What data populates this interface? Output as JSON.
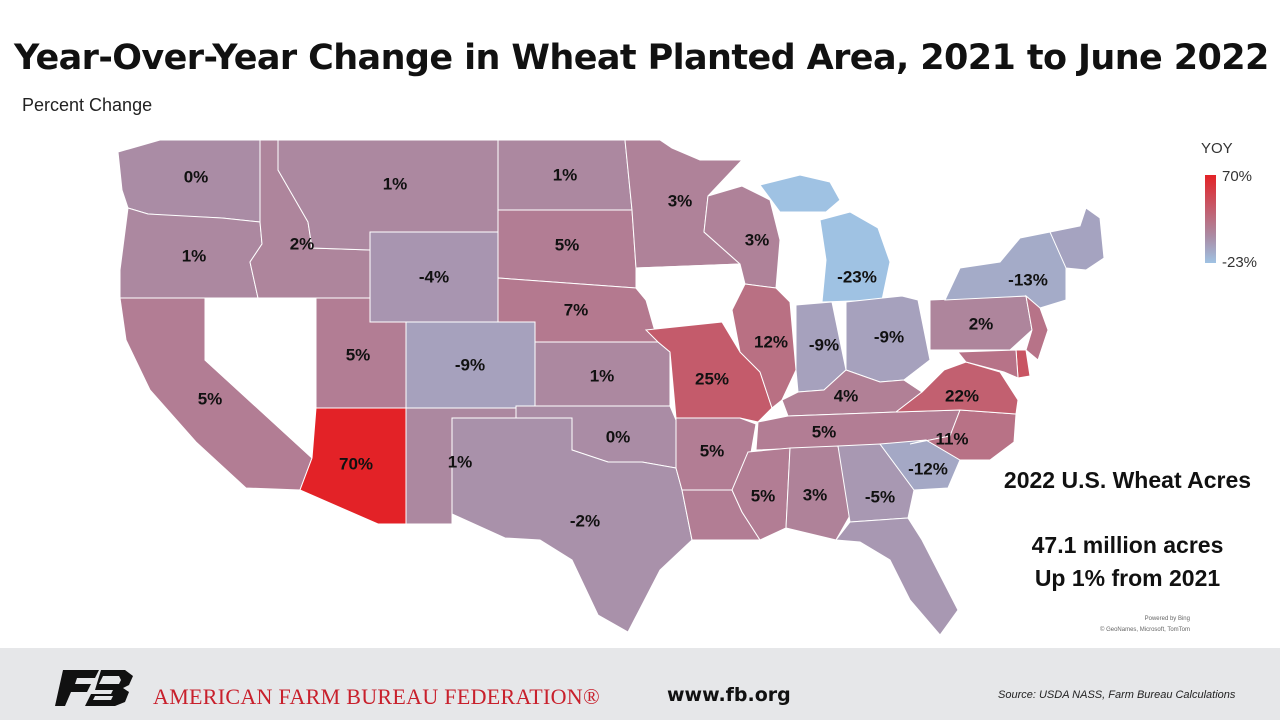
{
  "title": "Year-Over-Year Change in Wheat Planted Area, 2021 to June 2022",
  "subtitle": "Percent Change",
  "legend": {
    "title": "YOY",
    "max_label": "70%",
    "min_label": "-23%",
    "max": 70,
    "min": -23,
    "color_high": "#e32227",
    "color_low": "#9fc2e3"
  },
  "summary": {
    "title": "2022 U.S. Wheat Acres",
    "line1": "47.1 million acres",
    "line2": "Up 1% from 2021"
  },
  "map_credit": {
    "line1": "Powered by Bing",
    "line2": "© GeoNames, Microsoft, TomTom"
  },
  "footer": {
    "org": "AMERICAN FARM BUREAU FEDERATION®",
    "website": "www.fb.org",
    "source": "Source: USDA NASS, Farm Bureau Calculations"
  },
  "no_data_color": "#ffffff",
  "chart_data": {
    "type": "choropleth",
    "title": "Year-Over-Year Change in Wheat Planted Area, 2021 to June 2022",
    "subtitle": "Percent Change",
    "states": [
      {
        "state": "WA",
        "label": "0%",
        "value": 0
      },
      {
        "state": "OR",
        "label": "1%",
        "value": 1
      },
      {
        "state": "ID",
        "label": "2%",
        "value": 2
      },
      {
        "state": "MT",
        "label": "1%",
        "value": 1
      },
      {
        "state": "WY",
        "label": "-4%",
        "value": -4
      },
      {
        "state": "CA",
        "label": "5%",
        "value": 5
      },
      {
        "state": "NV",
        "label": "",
        "value": null
      },
      {
        "state": "UT",
        "label": "5%",
        "value": 5
      },
      {
        "state": "AZ",
        "label": "70%",
        "value": 70
      },
      {
        "state": "CO",
        "label": "-9%",
        "value": -9
      },
      {
        "state": "NM",
        "label": "1%",
        "value": 1
      },
      {
        "state": "ND",
        "label": "1%",
        "value": 1
      },
      {
        "state": "SD",
        "label": "5%",
        "value": 5
      },
      {
        "state": "NE",
        "label": "7%",
        "value": 7
      },
      {
        "state": "KS",
        "label": "1%",
        "value": 1
      },
      {
        "state": "OK",
        "label": "0%",
        "value": 0
      },
      {
        "state": "TX",
        "label": "-2%",
        "value": -2
      },
      {
        "state": "MN",
        "label": "3%",
        "value": 3
      },
      {
        "state": "IA",
        "label": "",
        "value": null
      },
      {
        "state": "MO",
        "label": "25%",
        "value": 25
      },
      {
        "state": "AR",
        "label": "5%",
        "value": 5
      },
      {
        "state": "LA",
        "label": "",
        "value": 5
      },
      {
        "state": "WI",
        "label": "3%",
        "value": 3
      },
      {
        "state": "IL",
        "label": "12%",
        "value": 12
      },
      {
        "state": "MI",
        "label": "-23%",
        "value": -23
      },
      {
        "state": "IN",
        "label": "-9%",
        "value": -9
      },
      {
        "state": "OH",
        "label": "-9%",
        "value": -9
      },
      {
        "state": "KY",
        "label": "4%",
        "value": 4
      },
      {
        "state": "TN",
        "label": "5%",
        "value": 5
      },
      {
        "state": "MS",
        "label": "5%",
        "value": 5
      },
      {
        "state": "AL",
        "label": "3%",
        "value": 3
      },
      {
        "state": "GA",
        "label": "-5%",
        "value": -5
      },
      {
        "state": "FL",
        "label": "",
        "value": -5
      },
      {
        "state": "SC",
        "label": "-12%",
        "value": -12
      },
      {
        "state": "NC",
        "label": "11%",
        "value": 11
      },
      {
        "state": "VA",
        "label": "22%",
        "value": 22
      },
      {
        "state": "WV",
        "label": "",
        "value": null
      },
      {
        "state": "PA",
        "label": "2%",
        "value": 2
      },
      {
        "state": "NY",
        "label": "-13%",
        "value": -13
      },
      {
        "state": "NJ",
        "label": "",
        "value": 10
      },
      {
        "state": "DE",
        "label": "",
        "value": 30
      },
      {
        "state": "MD",
        "label": "",
        "value": 10
      },
      {
        "state": "NE_STATES",
        "label": "",
        "value": -10
      }
    ]
  }
}
